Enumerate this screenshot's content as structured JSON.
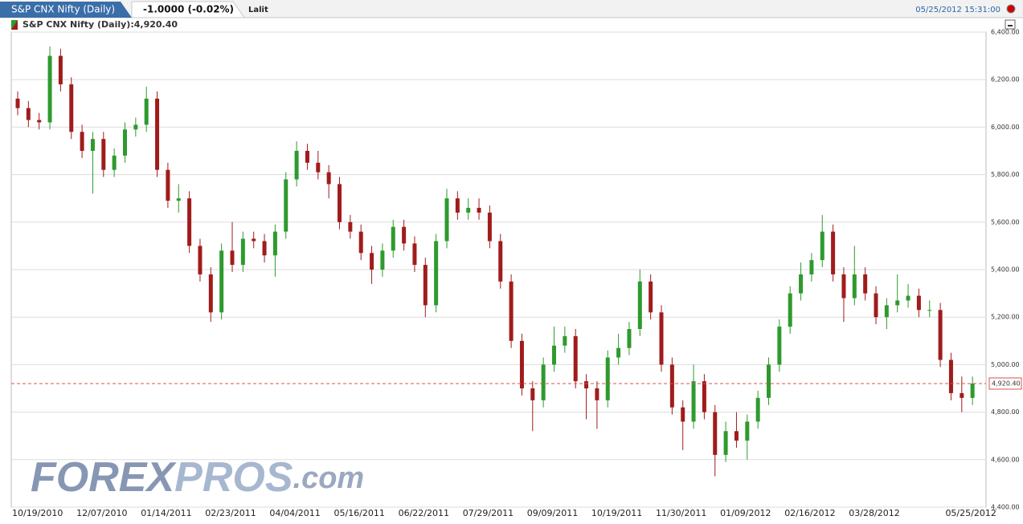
{
  "header": {
    "tab": "S&P CNX Nifty (Daily)",
    "change": "-1.0000 (-0.02%)",
    "user": "Lalit",
    "datetime": "05/25/2012 15:31:00"
  },
  "watermark": {
    "parts": [
      "FOREX",
      "PROS",
      ".com"
    ],
    "colors": [
      "#8797b3",
      "#a7b7d0",
      "#9aa8c0"
    ]
  },
  "chart_data": {
    "type": "candlestick",
    "title": "S&P CNX Nifty (Daily):4,920.40",
    "up_color": "#2e9a2e",
    "down_color": "#a01c1c",
    "last_price": {
      "value": 4920.4,
      "label": "4,920.40"
    },
    "last_price_color": "#d9534f",
    "categories": [
      null,
      null,
      "10/19/2010",
      null,
      null,
      null,
      null,
      null,
      "12/07/2010",
      null,
      null,
      null,
      null,
      null,
      "01/14/2011",
      null,
      null,
      null,
      null,
      null,
      "02/23/2011",
      null,
      null,
      null,
      null,
      null,
      "04/04/2011",
      null,
      null,
      null,
      null,
      null,
      "05/16/2011",
      null,
      null,
      null,
      null,
      null,
      "06/22/2011",
      null,
      null,
      null,
      null,
      null,
      "07/29/2011",
      null,
      null,
      null,
      null,
      null,
      "09/09/2011",
      null,
      null,
      null,
      null,
      null,
      "10/19/2011",
      null,
      null,
      null,
      null,
      null,
      "11/30/2011",
      null,
      null,
      null,
      null,
      null,
      "01/09/2012",
      null,
      null,
      null,
      null,
      null,
      "02/16/2012",
      null,
      null,
      null,
      null,
      null,
      "03/28/2012",
      null,
      null,
      null,
      null,
      null,
      null,
      null,
      null,
      "05/25/2012"
    ],
    "open": [
      6120,
      6080,
      6030,
      6020,
      6300,
      6180,
      5980,
      5900,
      5950,
      5820,
      5880,
      5990,
      6010,
      6120,
      5820,
      5690,
      5700,
      5500,
      5380,
      5220,
      5480,
      5420,
      5530,
      5520,
      5460,
      5560,
      5780,
      5900,
      5850,
      5810,
      5760,
      5600,
      5560,
      5470,
      5400,
      5480,
      5580,
      5510,
      5420,
      5250,
      5520,
      5700,
      5640,
      5660,
      5640,
      5520,
      5350,
      5100,
      4900,
      4850,
      5000,
      5080,
      5120,
      4930,
      4900,
      4850,
      5030,
      5070,
      5150,
      5350,
      5220,
      5000,
      4820,
      4760,
      4930,
      4800,
      4620,
      4720,
      4680,
      4760,
      4860,
      5000,
      5160,
      5300,
      5380,
      5440,
      5560,
      5380,
      5280,
      5380,
      5300,
      5200,
      5250,
      5270,
      5290,
      5230,
      5230,
      5020,
      4880,
      4860
    ],
    "high": [
      6150,
      6110,
      6060,
      6340,
      6330,
      6210,
      6010,
      5980,
      5980,
      5910,
      6020,
      6040,
      6170,
      6150,
      5850,
      5760,
      5730,
      5530,
      5410,
      5510,
      5600,
      5560,
      5560,
      5550,
      5590,
      5810,
      5940,
      5930,
      5900,
      5840,
      5790,
      5630,
      5590,
      5500,
      5510,
      5610,
      5610,
      5540,
      5450,
      5550,
      5740,
      5730,
      5700,
      5700,
      5670,
      5550,
      5380,
      5130,
      4930,
      5030,
      5160,
      5160,
      5150,
      4960,
      4930,
      5060,
      5130,
      5180,
      5400,
      5380,
      5250,
      5030,
      4850,
      5000,
      4960,
      4830,
      4760,
      4800,
      4790,
      4890,
      5030,
      5190,
      5330,
      5430,
      5470,
      5630,
      5590,
      5410,
      5500,
      5410,
      5330,
      5280,
      5380,
      5340,
      5320,
      5270,
      5260,
      5050,
      4950,
      4950
    ],
    "low": [
      6050,
      6000,
      5990,
      5990,
      6150,
      5950,
      5870,
      5720,
      5790,
      5790,
      5850,
      5960,
      5980,
      5790,
      5660,
      5640,
      5470,
      5350,
      5180,
      5190,
      5390,
      5390,
      5490,
      5430,
      5370,
      5530,
      5750,
      5820,
      5780,
      5700,
      5570,
      5530,
      5440,
      5340,
      5370,
      5450,
      5480,
      5390,
      5200,
      5220,
      5490,
      5610,
      5610,
      5610,
      5490,
      5320,
      5070,
      4870,
      4720,
      4820,
      4970,
      5050,
      4900,
      4770,
      4730,
      4820,
      5000,
      5040,
      5120,
      5190,
      4970,
      4790,
      4640,
      4730,
      4770,
      4530,
      4590,
      4650,
      4600,
      4730,
      4830,
      4970,
      5130,
      5270,
      5350,
      5410,
      5350,
      5180,
      5250,
      5270,
      5170,
      5150,
      5220,
      5240,
      5200,
      5200,
      4990,
      4850,
      4800,
      4830
    ],
    "close": [
      6080,
      6030,
      6020,
      6300,
      6180,
      5980,
      5900,
      5950,
      5820,
      5880,
      5990,
      6010,
      6120,
      5820,
      5690,
      5700,
      5500,
      5380,
      5220,
      5480,
      5420,
      5530,
      5520,
      5460,
      5560,
      5780,
      5900,
      5850,
      5810,
      5760,
      5600,
      5560,
      5470,
      5400,
      5480,
      5580,
      5510,
      5420,
      5250,
      5520,
      5700,
      5640,
      5660,
      5640,
      5520,
      5350,
      5100,
      4900,
      4850,
      5000,
      5080,
      5120,
      4930,
      4900,
      4850,
      5030,
      5070,
      5150,
      5350,
      5220,
      5000,
      4820,
      4760,
      4930,
      4800,
      4620,
      4720,
      4680,
      4760,
      4860,
      5000,
      5160,
      5300,
      5380,
      5440,
      5560,
      5380,
      5280,
      5380,
      5300,
      5200,
      5250,
      5270,
      5290,
      5230,
      5230,
      5020,
      4880,
      4860,
      4920.4
    ],
    "ylim": [
      4400,
      6400
    ],
    "yticks": [
      {
        "value": 4400,
        "label": "4,400.00"
      },
      {
        "value": 4600,
        "label": "4,600.00"
      },
      {
        "value": 4800,
        "label": "4,800.00"
      },
      {
        "value": 5000,
        "label": "5,000.00"
      },
      {
        "value": 5200,
        "label": "5,200.00"
      },
      {
        "value": 5400,
        "label": "5,400.00"
      },
      {
        "value": 5600,
        "label": "5,600.00"
      },
      {
        "value": 5800,
        "label": "5,800.00"
      },
      {
        "value": 6000,
        "label": "6,000.00"
      },
      {
        "value": 6200,
        "label": "6,200.00"
      },
      {
        "value": 6400,
        "label": "6,400.00"
      }
    ],
    "grid": true,
    "y_axis_side": "right"
  }
}
